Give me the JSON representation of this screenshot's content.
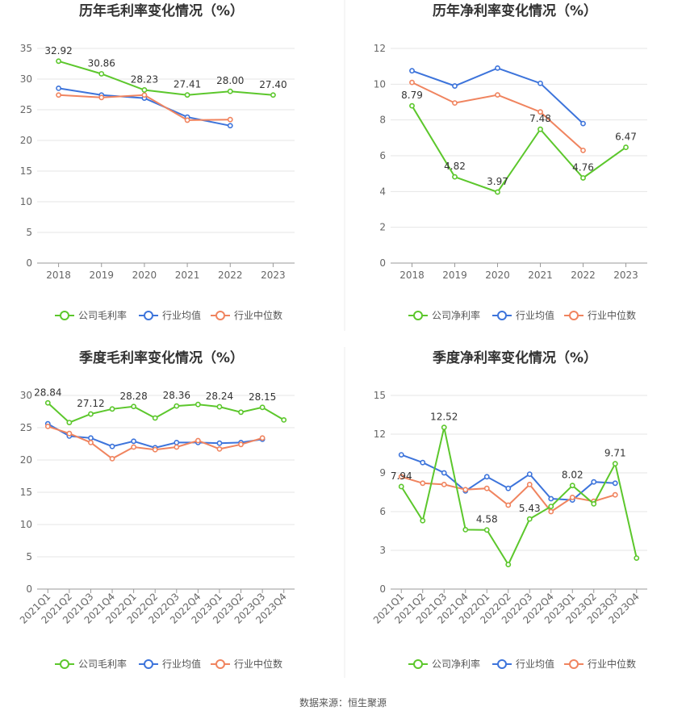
{
  "source": "数据来源：恒生聚源",
  "colors": {
    "company": "#5cc72c",
    "average": "#3d74db",
    "median": "#f0845f",
    "grid": "#e6e6e6",
    "axis": "#999999"
  },
  "legend_icon": "circle-line-marker-icon",
  "chart_data": [
    {
      "type": "line",
      "title": "历年毛利率变化情况（%）",
      "categories": [
        "2018",
        "2019",
        "2020",
        "2021",
        "2022",
        "2023"
      ],
      "yticks": [
        "0",
        "5",
        "10",
        "15",
        "20",
        "25",
        "30",
        "35"
      ],
      "ylim": [
        0,
        35
      ],
      "grid": true,
      "legend_position": "bottom",
      "series": [
        {
          "name": "公司毛利率",
          "values": [
            32.92,
            30.86,
            28.23,
            27.41,
            28.0,
            27.4
          ],
          "labels": [
            "32.92",
            "30.86",
            "28.23",
            "27.41",
            "28.00",
            "27.40"
          ]
        },
        {
          "name": "行业均值",
          "values": [
            28.5,
            27.4,
            26.9,
            23.8,
            22.4,
            null
          ]
        },
        {
          "name": "行业中位数",
          "values": [
            27.4,
            27.0,
            27.4,
            23.3,
            23.4,
            null
          ]
        }
      ]
    },
    {
      "type": "line",
      "title": "历年净利率变化情况（%）",
      "categories": [
        "2018",
        "2019",
        "2020",
        "2021",
        "2022",
        "2023"
      ],
      "yticks": [
        "0",
        "2",
        "4",
        "6",
        "8",
        "10",
        "12"
      ],
      "ylim": [
        0,
        12
      ],
      "grid": true,
      "legend_position": "bottom",
      "series": [
        {
          "name": "公司净利率",
          "values": [
            8.79,
            4.82,
            3.97,
            7.48,
            4.76,
            6.47
          ],
          "labels": [
            "8.79",
            "4.82",
            "3.97",
            "7.48",
            "4.76",
            "6.47"
          ]
        },
        {
          "name": "行业均值",
          "values": [
            10.75,
            9.9,
            10.9,
            10.05,
            7.8,
            null
          ]
        },
        {
          "name": "行业中位数",
          "values": [
            10.1,
            8.95,
            9.4,
            8.45,
            6.3,
            null
          ]
        }
      ]
    },
    {
      "type": "line",
      "title": "季度毛利率变化情况（%）",
      "categories": [
        "2021Q1",
        "2021Q2",
        "2021Q3",
        "2021Q4",
        "2022Q1",
        "2022Q2",
        "2022Q3",
        "2022Q4",
        "2023Q1",
        "2023Q2",
        "2023Q3",
        "2023Q4"
      ],
      "yticks": [
        "0",
        "5",
        "10",
        "15",
        "20",
        "25",
        "30"
      ],
      "ylim": [
        0,
        30
      ],
      "grid": true,
      "legend_position": "bottom",
      "series": [
        {
          "name": "公司毛利率",
          "values": [
            28.84,
            25.8,
            27.12,
            27.9,
            28.28,
            26.5,
            28.36,
            28.6,
            28.24,
            27.4,
            28.15,
            26.2
          ],
          "labels": [
            "28.84",
            "",
            "27.12",
            "",
            "28.28",
            "",
            "28.36",
            "",
            "28.24",
            "",
            "28.15",
            ""
          ]
        },
        {
          "name": "行业均值",
          "values": [
            25.6,
            23.7,
            23.4,
            22.1,
            22.9,
            21.9,
            22.7,
            22.7,
            22.6,
            22.7,
            23.2,
            null
          ]
        },
        {
          "name": "行业中位数",
          "values": [
            25.2,
            24.1,
            22.7,
            20.2,
            22.0,
            21.6,
            22.0,
            23.0,
            21.7,
            22.4,
            23.4,
            null
          ]
        }
      ]
    },
    {
      "type": "line",
      "title": "季度净利率变化情况（%）",
      "categories": [
        "2021Q1",
        "2021Q2",
        "2021Q3",
        "2021Q4",
        "2022Q1",
        "2022Q2",
        "2022Q3",
        "2022Q4",
        "2023Q1",
        "2023Q2",
        "2023Q3",
        "2023Q4"
      ],
      "yticks": [
        "0",
        "3",
        "6",
        "9",
        "12",
        "15"
      ],
      "ylim": [
        0,
        15
      ],
      "grid": true,
      "legend_position": "bottom",
      "series": [
        {
          "name": "公司净利率",
          "values": [
            7.94,
            5.3,
            12.52,
            4.6,
            4.58,
            1.9,
            5.43,
            6.4,
            8.02,
            6.6,
            9.71,
            2.4
          ],
          "labels": [
            "7.94",
            "",
            "12.52",
            "",
            "4.58",
            "",
            "5.43",
            "",
            "8.02",
            "",
            "9.71",
            ""
          ]
        },
        {
          "name": "行业均值",
          "values": [
            10.4,
            9.8,
            9.0,
            7.6,
            8.7,
            7.8,
            8.9,
            7.0,
            6.9,
            8.3,
            8.2,
            null
          ]
        },
        {
          "name": "行业中位数",
          "values": [
            8.7,
            8.2,
            8.1,
            7.7,
            7.8,
            6.5,
            8.1,
            6.0,
            7.1,
            6.8,
            7.3,
            null
          ]
        }
      ]
    }
  ]
}
